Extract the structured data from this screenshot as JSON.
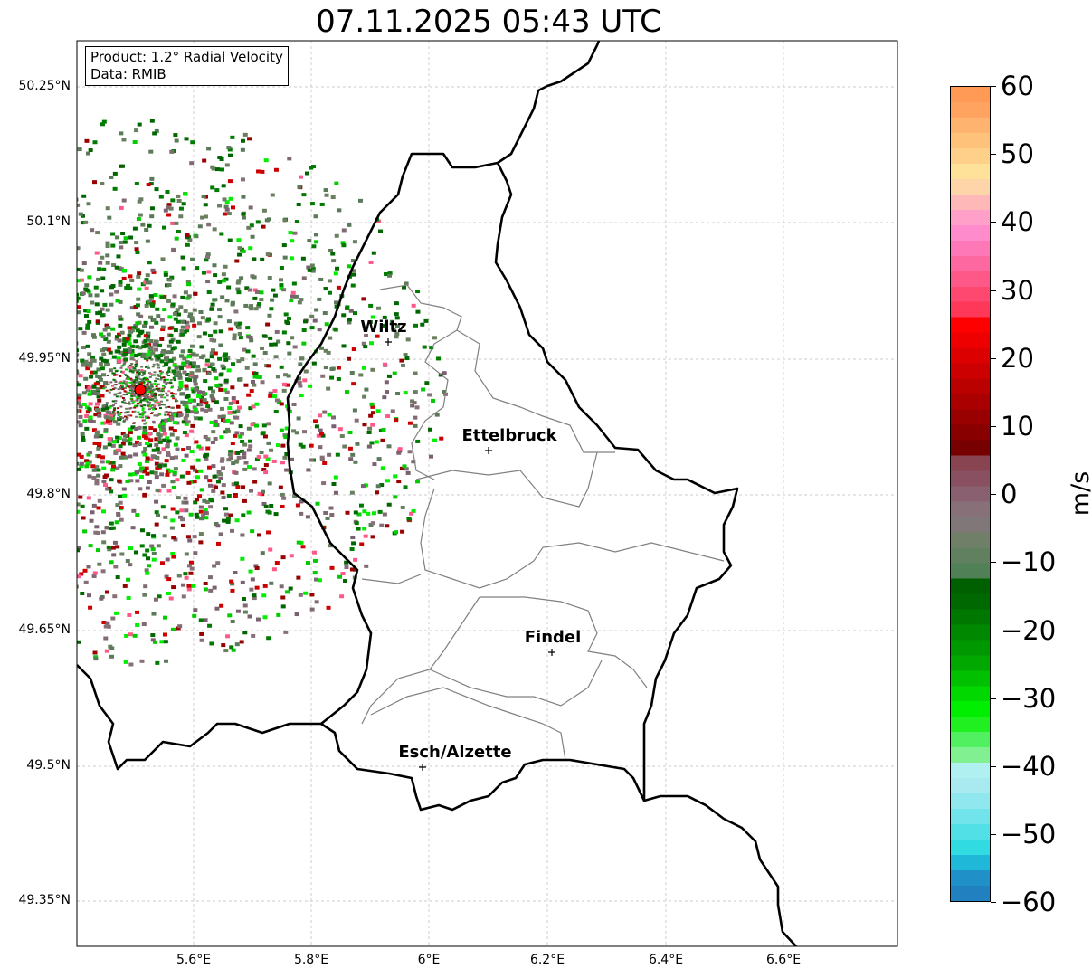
{
  "title": "07.11.2025 05:43 UTC",
  "info": {
    "product": "Product: 1.2° Radial Velocity",
    "data": "Data: RMIB"
  },
  "lat_ticks": [
    "50.25°N",
    "50.1°N",
    "49.95°N",
    "49.8°N",
    "49.65°N",
    "49.5°N",
    "49.35°N"
  ],
  "lon_ticks": [
    "5.6°E",
    "5.8°E",
    "6°E",
    "6.2°E",
    "6.4°E",
    "6.6°E"
  ],
  "colorbar": {
    "label": "m/s",
    "ticks": [
      "60",
      "50",
      "40",
      "30",
      "20",
      "10",
      "0",
      "−10",
      "−20",
      "−30",
      "−40",
      "−50",
      "−60"
    ],
    "min": -60,
    "max": 60
  },
  "cities": [
    {
      "name": "Wiltz"
    },
    {
      "name": "Ettelbruck"
    },
    {
      "name": "Findel"
    },
    {
      "name": "Esch/Alzette"
    }
  ],
  "colors": {
    "border": "#000000",
    "cantons": "#808080",
    "radar_site": "#ff0000"
  }
}
